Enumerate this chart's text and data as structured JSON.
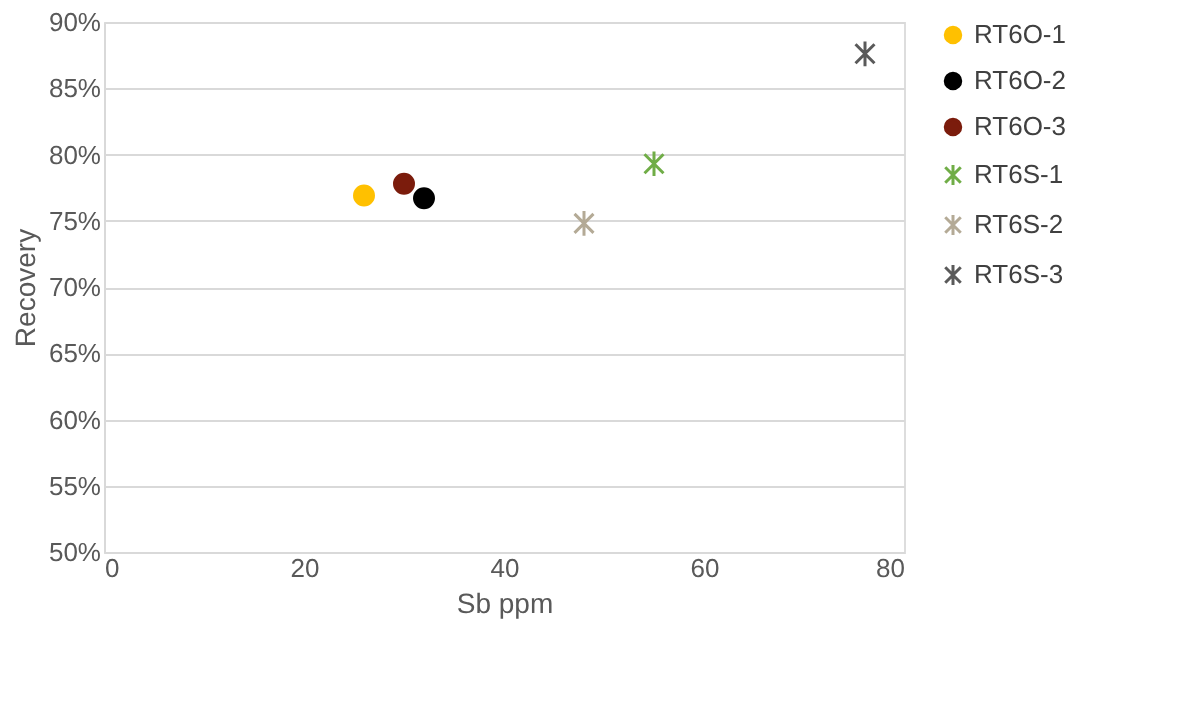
{
  "chart_data": {
    "type": "scatter",
    "xlabel": "Sb ppm",
    "ylabel": "Recovery",
    "series": [
      {
        "name": "RT6O-1",
        "color": "#ffc000",
        "marker": "circle",
        "x": [
          26.0
        ],
        "values": [
          76.9
        ]
      },
      {
        "name": "RT6O-2",
        "color": "#000000",
        "marker": "circle",
        "x": [
          32.0
        ],
        "values": [
          76.7
        ]
      },
      {
        "name": "RT6O-3",
        "color": "#7b1c0c",
        "marker": "circle",
        "x": [
          30.0
        ],
        "values": [
          77.8
        ]
      },
      {
        "name": "RT6S-1",
        "color": "#70ad47",
        "marker": "cross",
        "x": [
          55.0
        ],
        "values": [
          79.3
        ]
      },
      {
        "name": "RT6S-2",
        "color": "#b4aa96",
        "marker": "cross",
        "x": [
          48.0
        ],
        "values": [
          74.8
        ]
      },
      {
        "name": "RT6S-3",
        "color": "#5a5a5a",
        "marker": "cross",
        "x": [
          76.1
        ],
        "values": [
          87.6
        ]
      }
    ],
    "xlim": [
      0,
      80
    ],
    "xticks": [
      0,
      20,
      40,
      60,
      80
    ],
    "ylim": [
      50,
      90
    ],
    "yticks": [
      {
        "value": 50,
        "label": "50%"
      },
      {
        "value": 55,
        "label": "55%"
      },
      {
        "value": 60,
        "label": "60%"
      },
      {
        "value": 65,
        "label": "65%"
      },
      {
        "value": 70,
        "label": "70%"
      },
      {
        "value": 75,
        "label": "75%"
      },
      {
        "value": 80,
        "label": "80%"
      },
      {
        "value": 85,
        "label": "85%"
      },
      {
        "value": 90,
        "label": "90%"
      }
    ],
    "grid": "y",
    "legend": "right"
  }
}
